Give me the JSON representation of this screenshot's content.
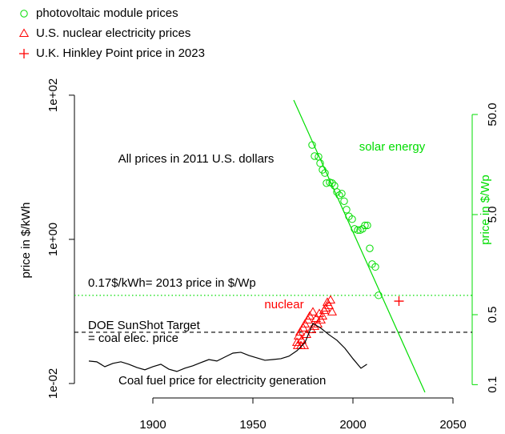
{
  "chart_data": {
    "type": "scatter",
    "y_label": "price in $/kWh",
    "y2_label": "price in $/Wp",
    "xlim": [
      1860.8,
      2059.6
    ],
    "ylim": [
      0.0063,
      1750
    ],
    "y2lim": [
      0.0736,
      612
    ],
    "log_y": true,
    "log_y2": true,
    "xticks": [
      1900,
      1950,
      2000,
      2050
    ],
    "yticks": [
      {
        "value": 100,
        "label": "1e+02"
      },
      {
        "value": 1,
        "label": "1e+00"
      },
      {
        "value": 0.01,
        "label": "1e-02"
      }
    ],
    "y2ticks": [
      {
        "value": 0.1,
        "label": "0.1"
      },
      {
        "value": 0.5,
        "label": "0.5"
      },
      {
        "value": 5,
        "label": "5.0"
      },
      {
        "value": 50,
        "label": "50.0"
      }
    ],
    "y2_color": "#00dd00",
    "legend": "top-left",
    "series": [
      {
        "name": "photovoltaic module prices",
        "color": "#00dd00",
        "marker": "circle",
        "axis": "y2",
        "x": [
          1979.6,
          1980.8,
          1982.8,
          1983.6,
          1984.8,
          1986,
          1986.8,
          1988.4,
          1989.6,
          1990.8,
          1992,
          1993.2,
          1994.4,
          1995.6,
          1996.8,
          1998,
          1999.6,
          2000.8,
          2002.4,
          2003.6,
          2004.8,
          2006,
          2007.2,
          2008.4,
          2009.6,
          2011.2,
          2012.8
        ],
        "values": [
          24.8,
          19.2,
          18.9,
          16.3,
          14.0,
          13.0,
          10.3,
          10.5,
          10.3,
          9.7,
          8.4,
          7.8,
          8.1,
          6.8,
          5.6,
          4.8,
          4.5,
          3.6,
          3.5,
          3.5,
          3.6,
          3.9,
          3.9,
          2.3,
          1.6,
          1.5,
          0.78
        ]
      },
      {
        "name": "U.S. nuclear electricity prices",
        "color": "#ff0000",
        "marker": "triangle",
        "x": [
          1972,
          1972.8,
          1973.6,
          1974.4,
          1975.2,
          1976,
          1976.8,
          1977.6,
          1978.4,
          1979.2,
          1980,
          1980.8,
          1981.6,
          1982.4,
          1983.2,
          1984,
          1984.8,
          1985.6,
          1986.4,
          1987.2,
          1988,
          1988.8,
          1989.6,
          1972.4,
          1974,
          1975.6
        ],
        "values": [
          0.0369,
          0.0453,
          0.0514,
          0.0398,
          0.0585,
          0.0664,
          0.0476,
          0.0755,
          0.0857,
          0.0555,
          0.0975,
          0.0615,
          0.0794,
          0.0664,
          0.0927,
          0.0755,
          0.0857,
          0.1026,
          0.1107,
          0.1325,
          0.1197,
          0.143,
          0.0975,
          0.0333,
          0.0333,
          0.0333
        ]
      },
      {
        "name": "U.K. Hinkley Point price in 2023",
        "color": "#ff0000",
        "marker": "plus",
        "x": [
          2023
        ],
        "values": [
          0.139
        ]
      },
      {
        "color": "#000000",
        "marker": "line",
        "x": [
          1868,
          1872,
          1876,
          1880,
          1884,
          1888,
          1892,
          1896,
          1900,
          1904,
          1908,
          1912,
          1916,
          1920,
          1924,
          1928,
          1932,
          1936,
          1940,
          1944,
          1948,
          1952,
          1956,
          1960,
          1964,
          1968,
          1972,
          1976,
          1980,
          1984,
          1988,
          1992,
          1996,
          2000,
          2004,
          2007
        ],
        "values": [
          0.0205,
          0.02,
          0.0171,
          0.019,
          0.02,
          0.0185,
          0.0167,
          0.0155,
          0.0171,
          0.0185,
          0.0158,
          0.0147,
          0.0163,
          0.0176,
          0.0195,
          0.0215,
          0.0205,
          0.0233,
          0.0264,
          0.0271,
          0.0245,
          0.0227,
          0.021,
          0.0215,
          0.0221,
          0.0239,
          0.0285,
          0.0369,
          0.0681,
          0.0585,
          0.0476,
          0.0398,
          0.0308,
          0.0221,
          0.0163,
          0.0185
        ]
      },
      {
        "color": "#00dd00",
        "marker": "line",
        "axis": "y2",
        "x": [
          1970.4,
          2036
        ],
        "values": [
          69.7,
          0.084
        ]
      }
    ],
    "hlines": [
      {
        "value": 0.167,
        "color": "#00dd00",
        "dash": "dotted"
      },
      {
        "value": 0.0514,
        "color": "#000000",
        "dash": "dashed"
      }
    ],
    "annotations": [
      {
        "text": "All prices in 2011 U.S. dollars",
        "color": "#000000"
      },
      {
        "text": "solar energy",
        "color": "#00dd00"
      },
      {
        "text": "nuclear",
        "color": "#ff0000"
      },
      {
        "text": "0.17$/kWh= 2013 price in $/Wp",
        "color": "#000000"
      },
      {
        "text": "DOE SunShot Target",
        "color": "#000000"
      },
      {
        "text": "= coal elec. price",
        "color": "#000000"
      },
      {
        "text": "Coal fuel price for electricity generation",
        "color": "#000000"
      }
    ]
  }
}
